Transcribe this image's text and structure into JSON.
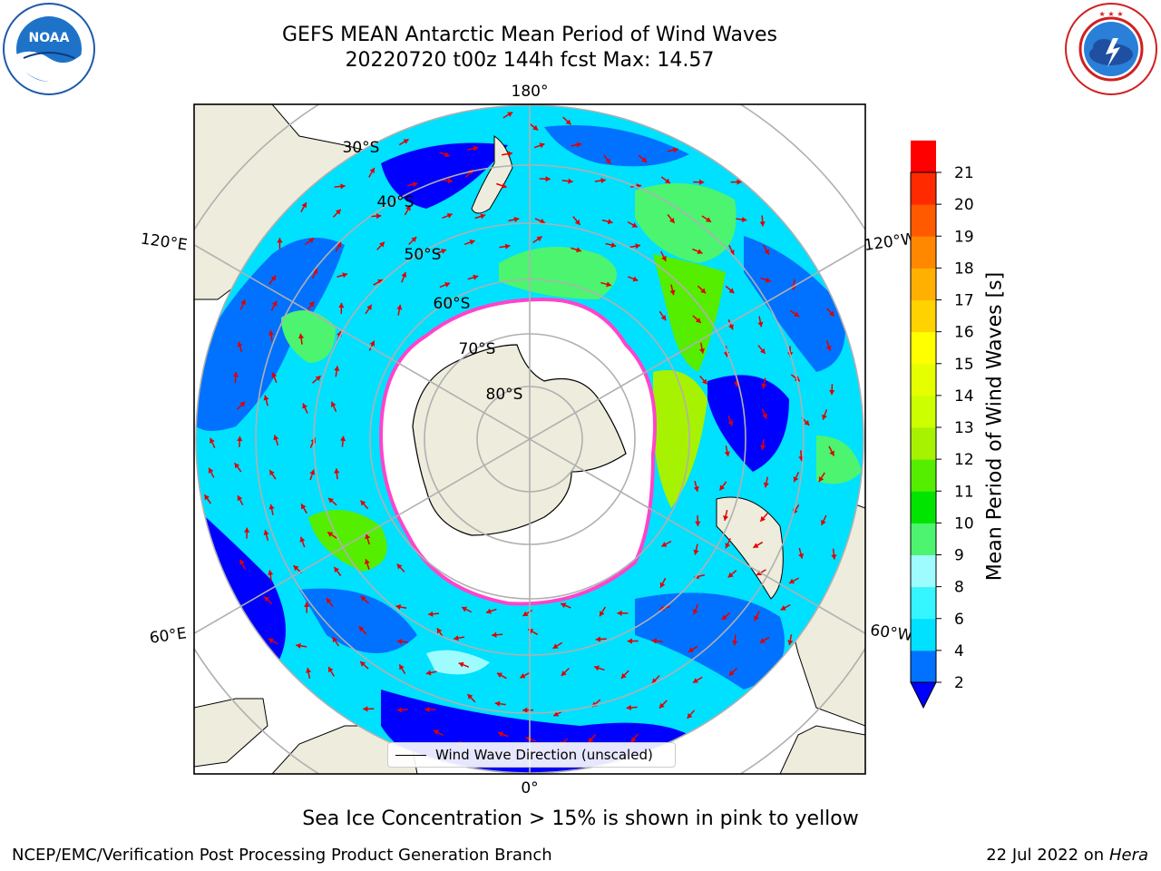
{
  "title": {
    "line1": "GEFS MEAN Antarctic Mean Period of Wind Waves",
    "line2": "20220720 t00z 144h fcst   Max: 14.57"
  },
  "logos": {
    "left": {
      "icon": "noaa-logo",
      "text": "NOAA",
      "ring_text": "NATIONAL OCEANIC AND ATMOSPHERIC ADMINISTRATION · U.S. DEPARTMENT OF COMMERCE"
    },
    "right": {
      "icon": "nws-logo",
      "ring_text": "NATIONAL WEATHER SERVICE"
    }
  },
  "map": {
    "longitude_labels": {
      "top": "180°",
      "bottom": "0°",
      "upper_left": "120°E",
      "upper_right": "120°W",
      "lower_left": "60°E",
      "lower_right": "60°W"
    },
    "latitude_labels": [
      "30°S",
      "40°S",
      "50°S",
      "60°S",
      "70°S",
      "80°S"
    ],
    "legend": "Wind Wave Direction (unscaled)"
  },
  "colorbar": {
    "label": "Mean Period of Wind Waves [s]",
    "ticks": [
      "2",
      "4",
      "6",
      "8",
      "9",
      "10",
      "11",
      "12",
      "13",
      "14",
      "15",
      "16",
      "17",
      "18",
      "19",
      "20",
      "21"
    ],
    "colors": [
      "#0000ff",
      "#0072ff",
      "#00e0ff",
      "#35f5ff",
      "#9efcff",
      "#4cf470",
      "#00e400",
      "#55ee00",
      "#a6f200",
      "#ccff00",
      "#e6ff00",
      "#ffff00",
      "#ffd200",
      "#ffb000",
      "#ff8800",
      "#ff5a00",
      "#ff2a00",
      "#ff0000"
    ],
    "extend": "min"
  },
  "note": "Sea Ice Concentration > 15% is shown in pink to yellow",
  "footer": {
    "left": "NCEP/EMC/Verification Post Processing Product Generation Branch",
    "date": "22 Jul 2022 on",
    "machine": "Hera"
  }
}
